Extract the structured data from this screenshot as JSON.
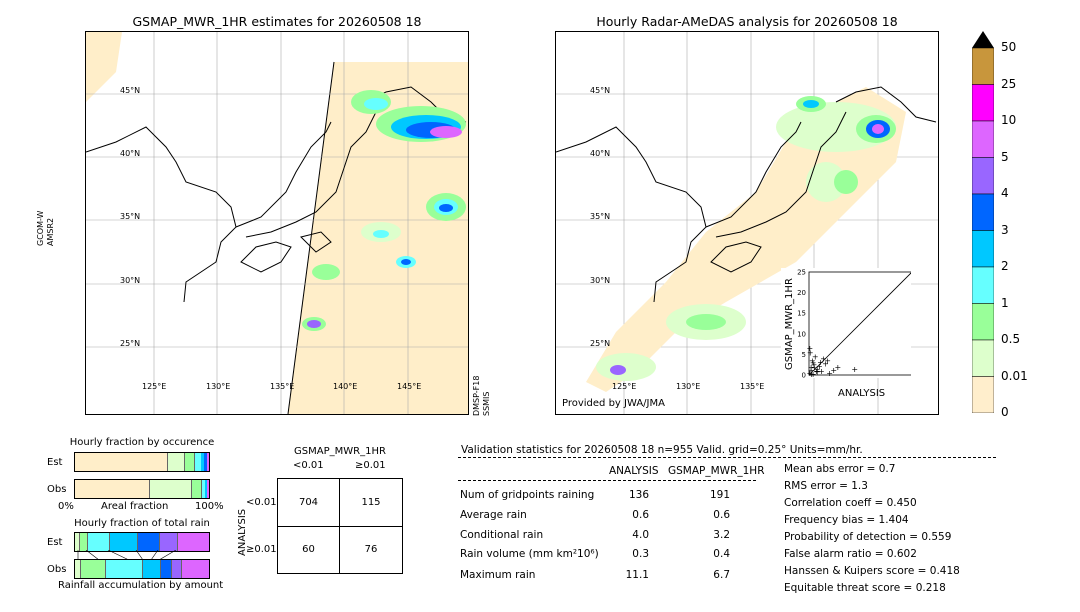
{
  "left_map": {
    "title": "GSMAP_MWR_1HR estimates for 20260508 18",
    "side_label_left_1": "GCOM-W",
    "side_label_left_2": "AMSR2",
    "side_label_right_1": "DMSP-F18",
    "side_label_right_2": "SSMIS",
    "lat_labels": [
      "45°N",
      "40°N",
      "35°N",
      "30°N",
      "25°N"
    ],
    "lon_labels": [
      "125°E",
      "130°E",
      "135°E",
      "140°E",
      "145°E"
    ]
  },
  "right_map": {
    "title": "Hourly Radar-AMeDAS analysis for 20260508 18",
    "credit": "Provided by JWA/JMA",
    "lat_labels": [
      "45°N",
      "40°N",
      "35°N",
      "30°N",
      "25°N"
    ],
    "lon_labels": [
      "125°E",
      "130°E",
      "135°E"
    ]
  },
  "scatter": {
    "xlabel": "ANALYSIS",
    "ylabel": "GSMAP_MWR_1HR",
    "ticks": [
      "0",
      "5",
      "10",
      "15",
      "20",
      "25"
    ]
  },
  "colorbar": {
    "labels": [
      "50",
      "25",
      "10",
      "5",
      "4",
      "3",
      "2",
      "1",
      "0.5",
      "0.01",
      "0"
    ],
    "colors": [
      "#c8963c",
      "#ff00ff",
      "#dd66ff",
      "#9966ff",
      "#0066ff",
      "#00c8ff",
      "#66ffff",
      "#99ff99",
      "#ddffcc",
      "#ffeecc"
    ]
  },
  "fraction_occurrence": {
    "title": "Hourly fraction by occurence",
    "row_est": "Est",
    "row_obs": "Obs",
    "axis_left": "0%",
    "axis_mid": "Areal fraction",
    "axis_right": "100%"
  },
  "fraction_total": {
    "title": "Hourly fraction of total rain",
    "row_est": "Est",
    "row_obs": "Obs",
    "footer": "Rainfall accumulation by amount"
  },
  "contingency": {
    "title": "GSMAP_MWR_1HR",
    "col1": "<0.01",
    "col2": "≥0.01",
    "row_axis": "ANALYSIS",
    "row1": "<0.01",
    "row2": "≥0.01",
    "cells": [
      "704",
      "115",
      "60",
      "76"
    ]
  },
  "validation": {
    "header": "Validation statistics for 20260508 18  n=955 Valid. grid=0.25° Units=mm/hr.",
    "col_analysis": "ANALYSIS",
    "col_gsmap": "GSMAP_MWR_1HR",
    "rows": [
      {
        "label": "Num of gridpoints raining",
        "analysis": "136",
        "gsmap": "191"
      },
      {
        "label": "Average rain",
        "analysis": "0.6",
        "gsmap": "0.6"
      },
      {
        "label": "Conditional rain",
        "analysis": "4.0",
        "gsmap": "3.2"
      },
      {
        "label": "Rain volume (mm km²10⁶)",
        "analysis": "0.3",
        "gsmap": "0.4"
      },
      {
        "label": "Maximum rain",
        "analysis": "11.1",
        "gsmap": "6.7"
      }
    ],
    "scores": [
      "Mean abs error =    0.7",
      "RMS error =    1.3",
      "Correlation coeff =  0.450",
      "Frequency bias =  1.404",
      "Probability of detection =  0.559",
      "False alarm ratio =  0.602",
      "Hanssen & Kuipers score =  0.418",
      "Equitable threat score =  0.218"
    ]
  },
  "chart_data": {
    "type": "scatter",
    "xlabel": "ANALYSIS",
    "ylabel": "GSMAP_MWR_1HR",
    "xlim": [
      0,
      25
    ],
    "ylim": [
      0,
      25
    ],
    "points": [
      [
        0.2,
        0.5
      ],
      [
        0.5,
        1.2
      ],
      [
        1,
        0.3
      ],
      [
        1.2,
        2.5
      ],
      [
        0.8,
        3.5
      ],
      [
        2,
        1.5
      ],
      [
        1.5,
        4.5
      ],
      [
        2.5,
        2.2
      ],
      [
        3,
        1
      ],
      [
        0.3,
        5.5
      ],
      [
        4,
        2.8
      ],
      [
        1,
        3
      ],
      [
        0.5,
        2
      ],
      [
        2,
        0.8
      ],
      [
        6,
        1.2
      ],
      [
        3.5,
        4
      ],
      [
        0.2,
        6.5
      ],
      [
        1.8,
        1
      ],
      [
        5,
        0.5
      ],
      [
        11.1,
        1.5
      ],
      [
        7,
        2
      ],
      [
        0.6,
        0.2
      ],
      [
        2.8,
        3.2
      ],
      [
        1.3,
        1.8
      ],
      [
        4.5,
        3.5
      ]
    ]
  }
}
